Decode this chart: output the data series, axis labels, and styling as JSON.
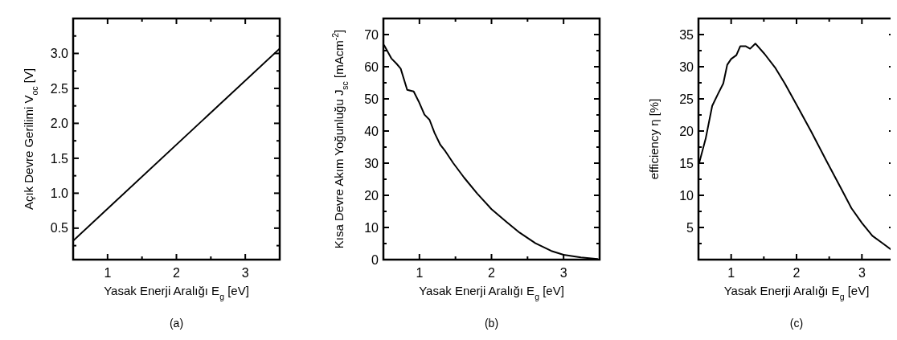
{
  "chart_data": [
    {
      "type": "line",
      "xlabel": "Yasak Enerji Aralığı E$_{g}$ [eV]",
      "ylabel": "Açık Devre Gerilimi  V$_{oc}$ [V]",
      "annotations": [
        "(a)"
      ],
      "xlim": [
        0.5,
        3.5
      ],
      "ylim": [
        0.05,
        3.5
      ],
      "xticks": [
        {
          "value": 0.5,
          "label": null
        },
        1,
        {
          "value": 1.5,
          "label": null
        },
        2,
        {
          "value": 2.5,
          "label": null
        },
        3
      ],
      "yticks": [
        {
          "value": 0.25,
          "label": null
        },
        {
          "value": 0.5,
          "label": "0.5"
        },
        {
          "value": 0.75,
          "label": null
        },
        {
          "value": 1,
          "label": "1.0"
        },
        {
          "value": 1.25,
          "label": null
        },
        {
          "value": 1.5,
          "label": "1.5"
        },
        {
          "value": 1.75,
          "label": null
        },
        {
          "value": 2,
          "label": "2.0"
        },
        {
          "value": 2.25,
          "label": null
        },
        {
          "value": 2.5,
          "label": "2.5"
        },
        {
          "value": 2.75,
          "label": null
        },
        {
          "value": 3,
          "label": "3.0"
        },
        {
          "value": 3.25,
          "label": null
        }
      ],
      "series": [
        {
          "color": "#000000",
          "x": [
            0.5,
            3.5
          ],
          "values": [
            0.32,
            3.07
          ]
        }
      ]
    },
    {
      "type": "line",
      "xlabel": "Yasak Enerji Aralığı E$_{g}$ [eV]",
      "ylabel": "Kısa Devre Akım Yoğunluğu J$_{sc}$ [mAcm$^{-2}$]",
      "annotations": [
        "(b)"
      ],
      "xlim": [
        0.5,
        3.5
      ],
      "ylim": [
        0,
        75
      ],
      "xticks": [
        {
          "value": 0.5,
          "label": null
        },
        1,
        {
          "value": 1.5,
          "label": null
        },
        2,
        {
          "value": 2.5,
          "label": null
        },
        3
      ],
      "yticks": [
        0,
        {
          "value": 5,
          "label": null
        },
        10,
        {
          "value": 15,
          "label": null
        },
        20,
        {
          "value": 25,
          "label": null
        },
        30,
        {
          "value": 35,
          "label": null
        },
        40,
        {
          "value": 45,
          "label": null
        },
        50,
        {
          "value": 55,
          "label": null
        },
        60,
        {
          "value": 65,
          "label": null
        },
        70
      ],
      "series": [
        {
          "color": "#000000",
          "x": [
            0.51,
            0.61,
            0.68,
            0.74,
            0.83,
            0.92,
            0.99,
            1.07,
            1.14,
            1.21,
            1.29,
            1.36,
            1.47,
            1.62,
            1.8,
            2.0,
            2.21,
            2.39,
            2.61,
            2.83,
            3.0,
            3.24,
            3.47
          ],
          "values": [
            66.7,
            62.6,
            61,
            59.4,
            52.8,
            52.3,
            49.2,
            45.1,
            43.5,
            39.4,
            35.7,
            33.7,
            30,
            25.5,
            20.6,
            15.7,
            11.7,
            8.4,
            5.1,
            2.7,
            1.5,
            0.7,
            0.2
          ]
        }
      ]
    },
    {
      "type": "line",
      "xlabel": "Yasak Enerji Aralığı E$_{g}$ [eV]",
      "ylabel": "efficiency η [%]",
      "annotations": [
        "(c)"
      ],
      "xlim": [
        0.5,
        3.5
      ],
      "ylim": [
        0,
        37.5
      ],
      "xticks": [
        {
          "value": 0.5,
          "label": null
        },
        1,
        {
          "value": 1.5,
          "label": null
        },
        2,
        {
          "value": 2.5,
          "label": null
        },
        3
      ],
      "yticks": [
        {
          "value": 2.5,
          "label": null
        },
        5,
        {
          "value": 7.5,
          "label": null
        },
        10,
        {
          "value": 12.5,
          "label": null
        },
        15,
        {
          "value": 17.5,
          "label": null
        },
        20,
        {
          "value": 22.5,
          "label": null
        },
        25,
        {
          "value": 27.5,
          "label": null
        },
        30,
        {
          "value": 32.5,
          "label": null
        },
        35
      ],
      "series": [
        {
          "color": "#000000",
          "x": [
            0.51,
            0.61,
            0.71,
            0.8,
            0.88,
            0.94,
            1.0,
            1.08,
            1.14,
            1.22,
            1.29,
            1.37,
            1.51,
            1.67,
            1.82,
            2.0,
            2.22,
            2.45,
            2.69,
            2.84,
            3.0,
            3.16,
            3.31,
            3.47
          ],
          "values": [
            15.0,
            18.8,
            23.9,
            25.8,
            27.4,
            30.3,
            31.2,
            31.8,
            33.2,
            33.2,
            32.8,
            33.6,
            32.0,
            29.9,
            27.4,
            24.1,
            20.0,
            15.5,
            10.9,
            8.0,
            5.7,
            3.7,
            2.6,
            1.4
          ]
        }
      ]
    }
  ]
}
